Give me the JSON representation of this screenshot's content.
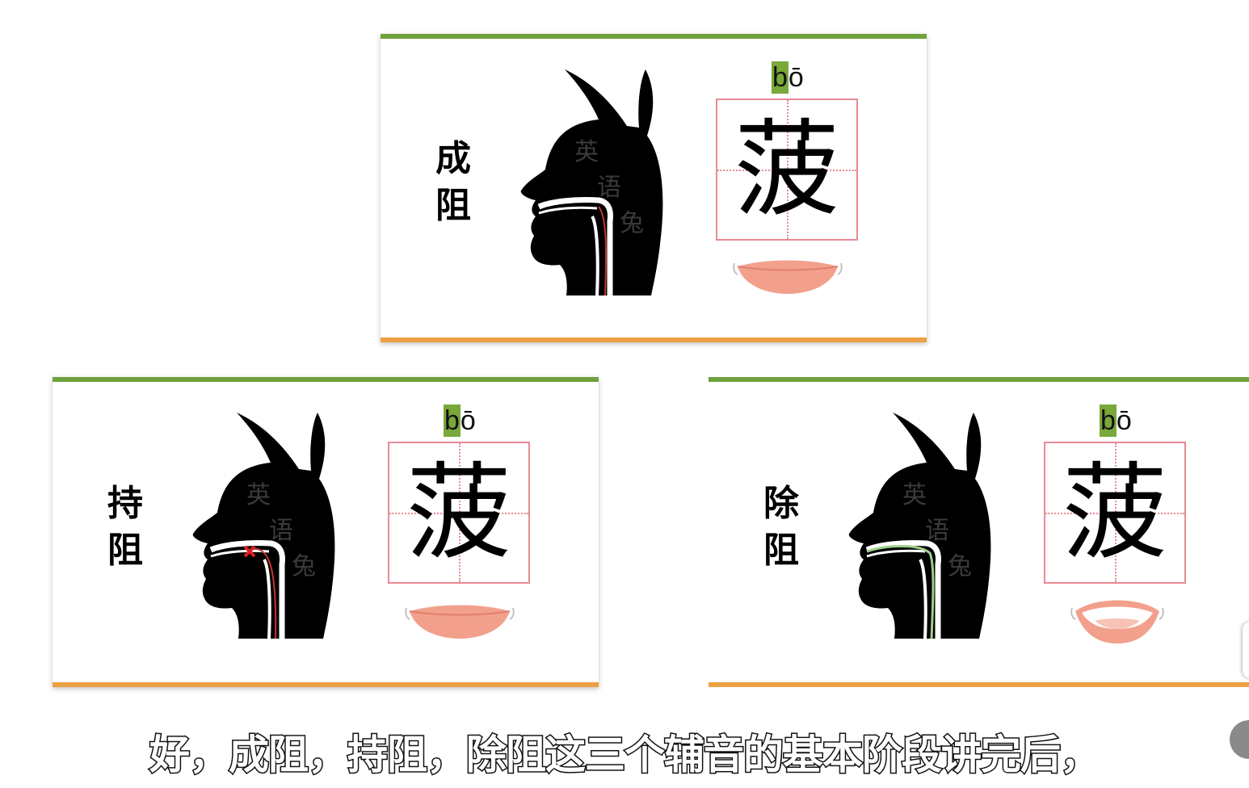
{
  "cards": [
    {
      "stage_chars": [
        "成",
        "阻"
      ],
      "pinyin_initial": "b",
      "pinyin_rest": "ō",
      "character": "菠",
      "head_watermark": [
        "英",
        "语",
        "兔"
      ],
      "mouth": "closed"
    },
    {
      "stage_chars": [
        "持",
        "阻"
      ],
      "pinyin_initial": "b",
      "pinyin_rest": "ō",
      "character": "菠",
      "head_watermark": [
        "英",
        "语",
        "兔"
      ],
      "mouth": "closed"
    },
    {
      "stage_chars": [
        "除",
        "阻"
      ],
      "pinyin_initial": "b",
      "pinyin_rest": "ō",
      "character": "菠",
      "head_watermark": [
        "英",
        "语",
        "兔"
      ],
      "mouth": "open"
    }
  ],
  "caption": "好，成阻，持阻，除阻这三个辅音的基本阶段讲完后，",
  "colors": {
    "top_bar": "#6fa23a",
    "bottom_bar": "#eba143",
    "grid": "#e88a93",
    "pinyin_highlight": "#79a83b",
    "lips": "#f2a08c"
  }
}
